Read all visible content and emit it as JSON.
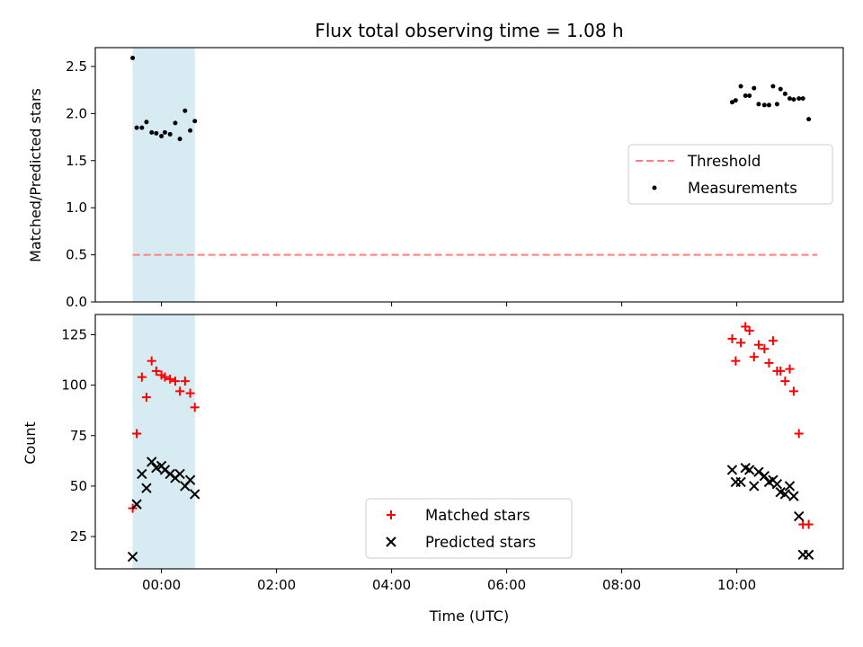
{
  "chart_data": [
    {
      "type": "scatter",
      "title": "Flux total observing time = 1.08 h",
      "xlabel": "",
      "ylabel": "Matched/Predicted stars",
      "xlim": [
        -1.15,
        11.85
      ],
      "ylim": [
        0.0,
        2.7
      ],
      "yticks": [
        0.0,
        0.5,
        1.0,
        1.5,
        2.0,
        2.5
      ],
      "ytick_labels": [
        "0.0",
        "0.5",
        "1.0",
        "1.5",
        "2.0",
        "2.5"
      ],
      "shaded_region": [
        -0.5,
        0.58
      ],
      "threshold": {
        "name": "Threshold",
        "value": 0.5,
        "x_range": [
          -0.5,
          11.4
        ],
        "color": "#ff7f7f"
      },
      "series": [
        {
          "name": "Measurements",
          "color": "#000000",
          "x": [
            -0.5,
            -0.43,
            -0.34,
            -0.26,
            -0.17,
            -0.09,
            0.0,
            0.06,
            0.15,
            0.24,
            0.32,
            0.41,
            0.5,
            0.58,
            9.92,
            9.98,
            10.07,
            10.15,
            10.22,
            10.3,
            10.38,
            10.48,
            10.56,
            10.63,
            10.7,
            10.76,
            10.84,
            10.92,
            10.99,
            11.08,
            11.15,
            11.25
          ],
          "y": [
            2.59,
            1.85,
            1.85,
            1.91,
            1.8,
            1.79,
            1.76,
            1.8,
            1.78,
            1.9,
            1.73,
            2.03,
            1.82,
            1.92,
            2.12,
            2.14,
            2.29,
            2.19,
            2.19,
            2.27,
            2.1,
            2.09,
            2.09,
            2.29,
            2.1,
            2.26,
            2.21,
            2.16,
            2.15,
            2.16,
            2.16,
            1.94
          ]
        }
      ]
    },
    {
      "type": "scatter",
      "title": "",
      "xlabel": "Time (UTC)",
      "ylabel": "Count",
      "xlim": [
        -1.15,
        11.85
      ],
      "ylim": [
        9,
        135
      ],
      "yticks": [
        25,
        50,
        75,
        100,
        125
      ],
      "ytick_labels": [
        "25",
        "50",
        "75",
        "100",
        "125"
      ],
      "xticks": [
        0,
        2,
        4,
        6,
        8,
        10
      ],
      "xtick_labels": [
        "00:00",
        "02:00",
        "04:00",
        "06:00",
        "08:00",
        "10:00"
      ],
      "shaded_region": [
        -0.5,
        0.58
      ],
      "series": [
        {
          "name": "Matched stars",
          "marker": "+",
          "color": "#ff0000",
          "x": [
            -0.5,
            -0.43,
            -0.34,
            -0.26,
            -0.17,
            -0.09,
            0.0,
            0.06,
            0.15,
            0.24,
            0.32,
            0.41,
            0.5,
            0.58,
            9.92,
            9.98,
            10.07,
            10.15,
            10.22,
            10.3,
            10.38,
            10.48,
            10.56,
            10.63,
            10.7,
            10.76,
            10.84,
            10.92,
            10.99,
            11.08,
            11.15,
            11.25
          ],
          "y": [
            39,
            76,
            104,
            94,
            112,
            107,
            105,
            104,
            103,
            102,
            97,
            102,
            96,
            89,
            123,
            112,
            121,
            129,
            127,
            114,
            120,
            118,
            111,
            122,
            107,
            107,
            102,
            108,
            97,
            76,
            31,
            31
          ]
        },
        {
          "name": "Predicted stars",
          "marker": "x",
          "color": "#000000",
          "x": [
            -0.5,
            -0.43,
            -0.34,
            -0.26,
            -0.17,
            -0.09,
            0.0,
            0.06,
            0.15,
            0.24,
            0.32,
            0.41,
            0.5,
            0.58,
            9.92,
            9.98,
            10.07,
            10.15,
            10.22,
            10.3,
            10.38,
            10.48,
            10.56,
            10.63,
            10.7,
            10.76,
            10.84,
            10.92,
            10.99,
            11.08,
            11.15,
            11.25
          ],
          "y": [
            15,
            41,
            56,
            49,
            62,
            59,
            60,
            58,
            56,
            54,
            56,
            50,
            53,
            46,
            58,
            52,
            52,
            59,
            58,
            50,
            57,
            55,
            52,
            53,
            51,
            47,
            46,
            50,
            45,
            35,
            16,
            16
          ]
        }
      ]
    }
  ]
}
